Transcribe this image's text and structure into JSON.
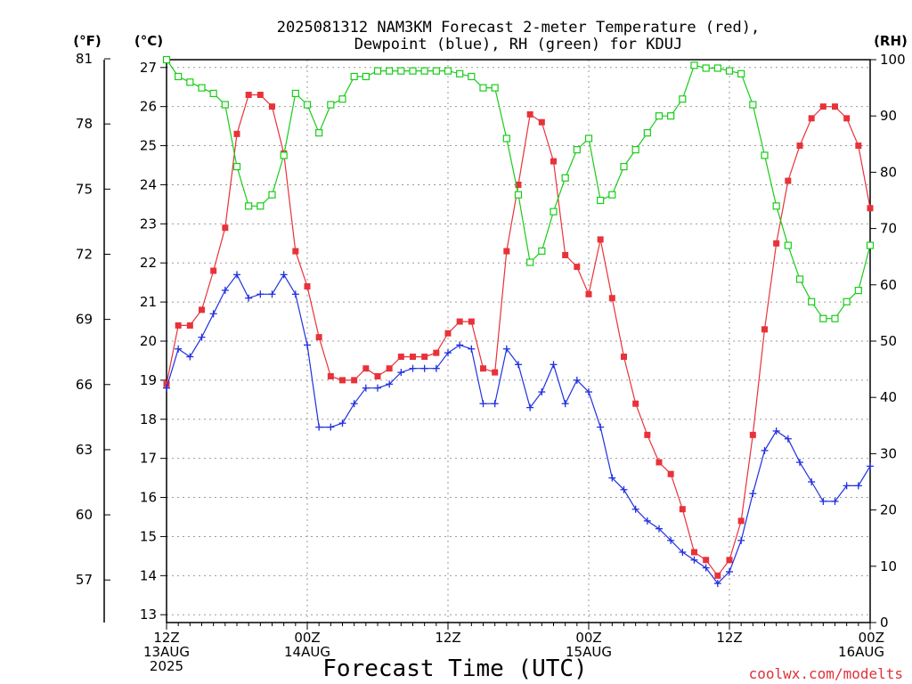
{
  "colors": {
    "temperature": "#e8323a",
    "dewpoint": "#2030e0",
    "rh": "#18cc18",
    "credit": "#e0303a",
    "grid": "#9a9a9a"
  },
  "chart_data": {
    "type": "line",
    "title_line1": "2025081312 NAM3KM Forecast 2-meter Temperature (red),",
    "title_line2": "Dewpoint (blue), RH (green) for KDUJ",
    "xlabel": "Forecast Time (UTC)",
    "credit": "coolwx.com/modelts",
    "unit_f": "(°F)",
    "unit_c": "(°C)",
    "unit_rh": "(RH)",
    "x_range_hours": [
      0,
      60
    ],
    "x_ticks": [
      {
        "hour": 0,
        "lines": [
          "12Z",
          "13AUG",
          "2025"
        ]
      },
      {
        "hour": 12,
        "lines": [
          "00Z",
          "14AUG"
        ]
      },
      {
        "hour": 24,
        "lines": [
          "12Z"
        ]
      },
      {
        "hour": 36,
        "lines": [
          "00Z",
          "15AUG"
        ]
      },
      {
        "hour": 48,
        "lines": [
          "12Z"
        ]
      },
      {
        "hour": 60,
        "lines": [
          "00Z",
          "16AUG"
        ]
      }
    ],
    "celsius_axis": {
      "range": [
        12.8,
        27.2
      ],
      "ticks": [
        13,
        14,
        15,
        16,
        17,
        18,
        19,
        20,
        21,
        22,
        23,
        24,
        25,
        26,
        27
      ]
    },
    "fahrenheit_axis": {
      "ticks": [
        57,
        60,
        63,
        66,
        69,
        72,
        75,
        78,
        81
      ]
    },
    "rh_axis": {
      "range": [
        0,
        100
      ],
      "ticks": [
        0,
        10,
        20,
        30,
        40,
        50,
        60,
        70,
        80,
        90,
        100
      ]
    },
    "x_hours": [
      0,
      1,
      2,
      3,
      4,
      5,
      6,
      7,
      8,
      9,
      10,
      11,
      12,
      13,
      14,
      15,
      16,
      17,
      18,
      19,
      20,
      21,
      22,
      23,
      24,
      25,
      26,
      27,
      28,
      29,
      30,
      31,
      32,
      33,
      34,
      35,
      36,
      37,
      38,
      39,
      40,
      41,
      42,
      43,
      44,
      45,
      46,
      47,
      48,
      49,
      50,
      51,
      52,
      53,
      54,
      55,
      56,
      57,
      58,
      59,
      60
    ],
    "series": [
      {
        "name": "Temperature",
        "units": "°C",
        "values": [
          18.9,
          20.4,
          20.4,
          20.8,
          21.8,
          22.9,
          25.3,
          26.3,
          26.3,
          26.0,
          24.8,
          22.3,
          21.4,
          20.1,
          19.1,
          19.0,
          19.0,
          19.3,
          19.1,
          19.3,
          19.6,
          19.6,
          19.6,
          19.7,
          20.2,
          20.5,
          20.5,
          19.3,
          19.2,
          22.3,
          24.0,
          25.8,
          25.6,
          24.6,
          22.2,
          21.9,
          21.2,
          22.6,
          21.1,
          19.6,
          18.4,
          17.6,
          16.9,
          16.6,
          15.7,
          14.6,
          14.4,
          14.0,
          14.4,
          15.4,
          17.6,
          20.3,
          22.5,
          24.1,
          25.0,
          25.7,
          26.0,
          26.0,
          25.7,
          25.0,
          23.4
        ]
      },
      {
        "name": "Dewpoint",
        "units": "°C",
        "values": [
          18.8,
          19.8,
          19.6,
          20.1,
          20.7,
          21.3,
          21.7,
          21.1,
          21.2,
          21.2,
          21.7,
          21.2,
          19.9,
          17.8,
          17.8,
          17.9,
          18.4,
          18.8,
          18.8,
          18.9,
          19.2,
          19.3,
          19.3,
          19.3,
          19.7,
          19.9,
          19.8,
          18.4,
          18.4,
          19.8,
          19.4,
          18.3,
          18.7,
          19.4,
          18.4,
          19.0,
          18.7,
          17.8,
          16.5,
          16.2,
          15.7,
          15.4,
          15.2,
          14.9,
          14.6,
          14.4,
          14.2,
          13.8,
          14.1,
          14.9,
          16.1,
          17.2,
          17.7,
          17.5,
          16.9,
          16.4,
          15.9,
          15.9,
          16.3,
          16.3,
          16.8
        ]
      },
      {
        "name": "RH",
        "units": "%",
        "values": [
          100,
          97,
          96,
          95,
          94,
          92,
          81,
          74,
          74,
          76,
          83,
          94,
          92,
          87,
          92,
          93,
          97,
          97,
          98,
          98,
          98,
          98,
          98,
          98,
          98,
          97.5,
          97,
          95,
          95,
          86,
          76,
          64,
          66,
          73,
          79,
          84,
          86,
          75,
          76,
          81,
          84,
          87,
          90,
          90,
          93,
          99,
          98.5,
          98.5,
          98,
          97.5,
          92,
          83,
          74,
          67,
          61,
          57,
          54,
          54,
          57,
          59,
          67
        ]
      }
    ]
  }
}
